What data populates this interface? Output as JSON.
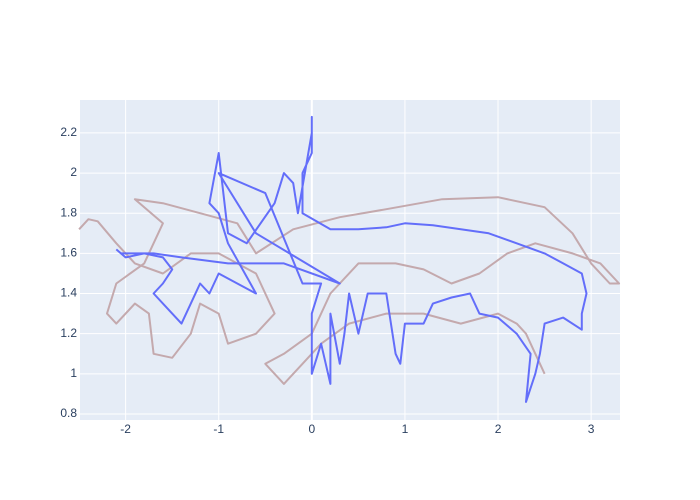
{
  "chart_data": {
    "type": "line",
    "xlim": [
      -2.49,
      3.31
    ],
    "ylim": [
      0.77,
      2.364
    ],
    "xticks": [
      -2,
      -1,
      0,
      1,
      2,
      3
    ],
    "yticks": [
      0.8,
      1,
      1.2,
      1.4,
      1.6,
      1.8,
      2,
      2.2
    ],
    "grid": true,
    "series": [
      {
        "color": "#c4a9ad",
        "x": [
          -2.5,
          -2.4,
          -2.3,
          -2.1,
          -1.9,
          -1.6,
          -1.3,
          -1.0,
          -0.6,
          -0.4,
          -0.6,
          -0.9,
          -1.0,
          -1.2,
          -1.3,
          -1.5,
          -1.7,
          -1.75,
          -1.9,
          -2.1,
          -2.2,
          -2.1,
          -1.8,
          -1.6,
          -1.9,
          -1.6,
          -1.2,
          -0.8,
          -0.6,
          -0.2,
          0.3,
          0.8,
          1.4,
          2.0,
          2.5,
          2.8,
          3.0,
          3.2,
          3.3,
          3.1,
          2.8,
          2.4,
          2.1,
          1.8,
          1.5,
          1.2,
          0.9,
          0.5,
          0.2,
          0.0,
          -0.3,
          -0.5,
          -0.3,
          -0.1,
          0.1,
          0.4,
          0.8,
          1.2,
          1.6,
          2.0,
          2.2,
          2.3,
          2.5
        ],
        "values": [
          1.72,
          1.77,
          1.76,
          1.65,
          1.55,
          1.5,
          1.6,
          1.6,
          1.5,
          1.3,
          1.2,
          1.15,
          1.3,
          1.35,
          1.2,
          1.08,
          1.1,
          1.3,
          1.35,
          1.25,
          1.3,
          1.45,
          1.55,
          1.75,
          1.87,
          1.85,
          1.8,
          1.75,
          1.6,
          1.72,
          1.78,
          1.82,
          1.87,
          1.88,
          1.83,
          1.7,
          1.55,
          1.45,
          1.45,
          1.55,
          1.6,
          1.65,
          1.6,
          1.5,
          1.45,
          1.52,
          1.55,
          1.55,
          1.4,
          1.2,
          1.1,
          1.05,
          0.95,
          1.05,
          1.15,
          1.25,
          1.3,
          1.3,
          1.25,
          1.3,
          1.25,
          1.2,
          1.0
        ]
      },
      {
        "color": "#636efa",
        "x": [
          -2.1,
          -2.0,
          -1.8,
          -1.6,
          -1.5,
          -1.6,
          -1.7,
          -1.5,
          -1.4,
          -1.3,
          -1.2,
          -1.1,
          -1.0,
          -0.8,
          -0.6,
          -0.9,
          -1.0,
          -1.1,
          -1.0,
          -0.9,
          -0.7,
          -0.4,
          -0.3,
          -0.2,
          -0.15,
          0.0,
          0.0,
          0.0,
          -0.1,
          -0.1,
          0.2,
          0.5,
          0.8,
          1.0,
          1.3,
          1.6,
          1.9,
          2.2,
          2.5,
          2.7,
          2.9,
          2.95,
          2.9,
          2.9,
          2.7,
          2.5,
          2.45,
          2.4,
          2.3,
          2.35,
          2.2,
          2.0,
          1.8,
          1.7,
          1.5,
          1.3,
          1.2,
          1.0,
          0.95,
          0.9,
          0.8,
          0.6,
          0.5,
          0.4,
          0.35,
          0.3,
          0.2,
          0.2,
          0.1,
          0.0,
          0.0,
          0.1,
          -0.1,
          -0.5,
          -1.0,
          -0.6,
          0.3,
          -0.3,
          -0.9,
          -1.4,
          -1.7,
          -2.05
        ],
        "values": [
          1.62,
          1.58,
          1.6,
          1.58,
          1.52,
          1.45,
          1.4,
          1.3,
          1.25,
          1.35,
          1.45,
          1.4,
          1.5,
          1.45,
          1.4,
          1.65,
          1.8,
          1.85,
          2.1,
          1.7,
          1.65,
          1.85,
          2.0,
          1.95,
          1.8,
          2.2,
          2.28,
          2.1,
          2.0,
          1.8,
          1.72,
          1.72,
          1.73,
          1.75,
          1.74,
          1.72,
          1.7,
          1.65,
          1.6,
          1.55,
          1.5,
          1.4,
          1.3,
          1.22,
          1.28,
          1.25,
          1.1,
          1.0,
          0.86,
          1.1,
          1.2,
          1.28,
          1.3,
          1.4,
          1.38,
          1.35,
          1.25,
          1.25,
          1.05,
          1.1,
          1.4,
          1.4,
          1.2,
          1.4,
          1.2,
          1.05,
          1.3,
          0.95,
          1.15,
          1.0,
          1.3,
          1.45,
          1.45,
          1.9,
          2.0,
          1.7,
          1.45,
          1.55,
          1.55,
          1.58,
          1.6,
          1.6
        ]
      }
    ]
  }
}
